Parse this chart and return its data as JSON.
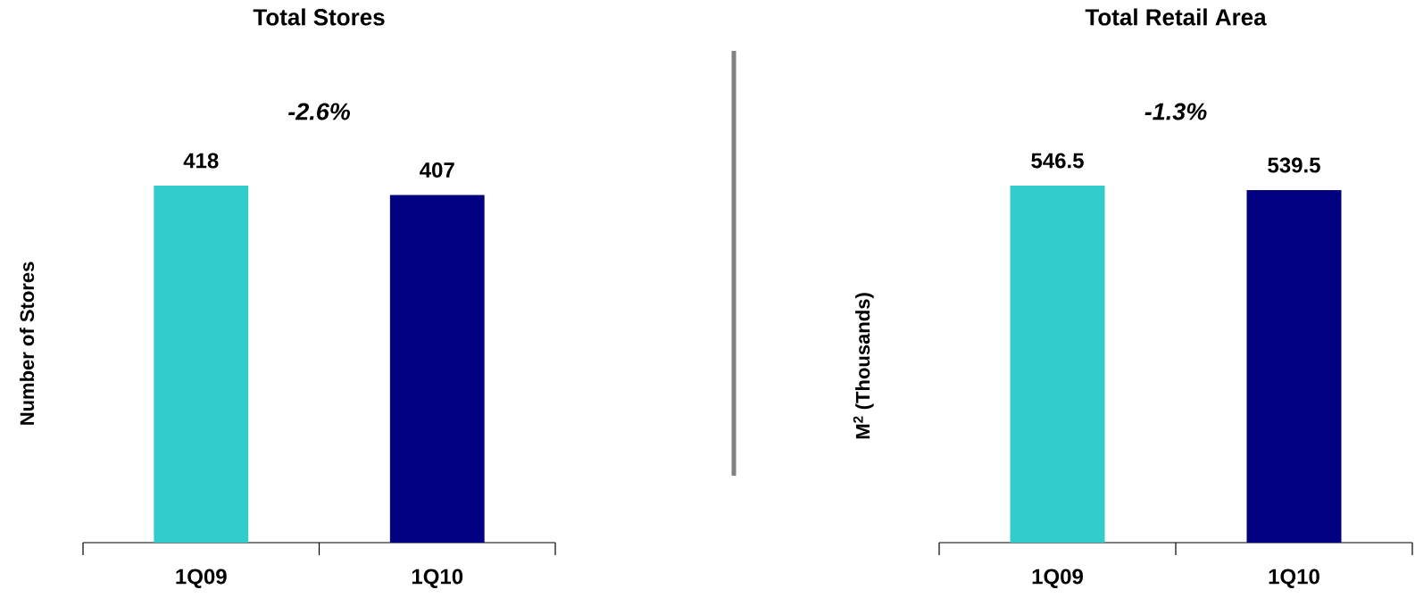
{
  "chart_data": [
    {
      "type": "bar",
      "title": "Total Stores",
      "ylabel": "Number of Stores",
      "categories": [
        "1Q09",
        "1Q10"
      ],
      "values": [
        418,
        407
      ],
      "colors": [
        "#33cccc",
        "#000080"
      ],
      "data_labels": true,
      "annotations": [
        "-2.6%"
      ]
    },
    {
      "type": "bar",
      "title": "Total Retail Area",
      "ylabel": "M$^{2}$ (Thousands)",
      "categories": [
        "1Q09",
        "1Q10"
      ],
      "values": [
        546.5,
        539.5
      ],
      "colors": [
        "#33cccc",
        "#000080"
      ],
      "data_labels": true,
      "annotations": [
        "-1.3%"
      ]
    }
  ]
}
